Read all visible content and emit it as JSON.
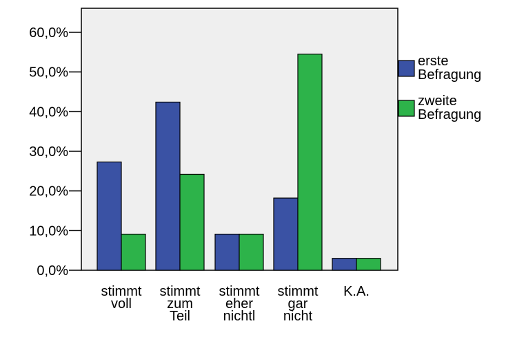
{
  "chart_data": {
    "type": "bar",
    "categories": [
      [
        "stimmt",
        "voll"
      ],
      [
        "stimmt",
        "zum",
        "Teil"
      ],
      [
        "stimmt",
        "eher",
        "nichtl"
      ],
      [
        "stimmt",
        "gar",
        "nicht"
      ],
      [
        "K.A."
      ]
    ],
    "series": [
      {
        "name": "erste Befragung",
        "name_lines": [
          "erste",
          "Befragung"
        ],
        "color": "#3a52a4",
        "values": [
          27.3,
          42.4,
          9.1,
          18.2,
          3.0
        ]
      },
      {
        "name": "zweite Befragung",
        "name_lines": [
          "zweite",
          "Befragung"
        ],
        "color": "#2db34a",
        "values": [
          9.1,
          24.2,
          9.1,
          54.5,
          3.0
        ]
      }
    ],
    "ylim": [
      0,
      60
    ],
    "yticks": [
      0,
      10,
      20,
      30,
      40,
      50,
      60
    ],
    "ytick_labels": [
      "0,0%",
      "10,0%",
      "20,0%",
      "30,0%",
      "40,0%",
      "50,0%",
      "60,0%"
    ],
    "legend_position": "right",
    "plot_background": "#efefef",
    "grid": false
  }
}
